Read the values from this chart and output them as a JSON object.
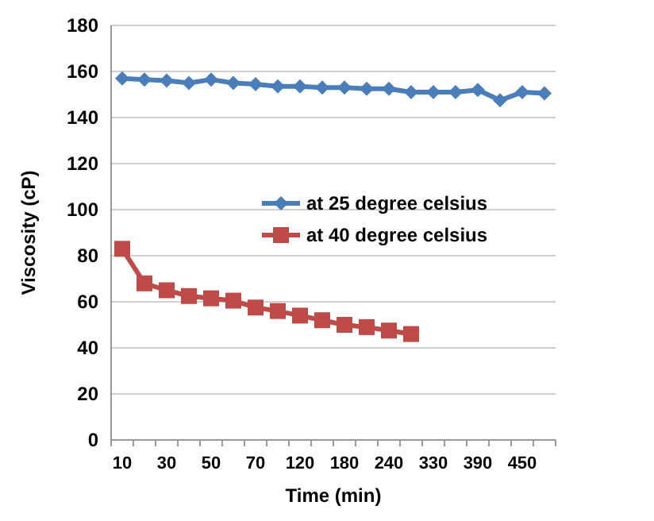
{
  "chart_data": {
    "type": "line",
    "xlabel": "Time (min)",
    "ylabel": "Viscosity (cP)",
    "categories": [
      "10",
      null,
      "30",
      null,
      "50",
      null,
      "70",
      null,
      "120",
      null,
      "180",
      null,
      "240",
      null,
      "330",
      null,
      "390",
      null,
      "450",
      null
    ],
    "series": [
      {
        "name": "at 25 degree celsius",
        "color": "#4a7ebb",
        "marker": "diamond",
        "values": [
          157,
          156.5,
          156,
          155,
          156.5,
          155,
          154.5,
          153.5,
          153.5,
          153,
          153,
          152.5,
          152.5,
          151,
          151,
          151,
          152,
          147.5,
          151,
          150.5
        ]
      },
      {
        "name": "at 40 degree celsius",
        "color": "#be4b48",
        "marker": "square",
        "values": [
          83,
          68,
          65,
          62.5,
          61.5,
          60.5,
          57.5,
          56,
          54,
          52,
          50,
          49,
          47.5,
          46,
          null,
          null,
          null,
          null,
          null,
          null
        ]
      }
    ],
    "ylim": [
      0,
      180
    ],
    "yticks": [
      0,
      20,
      40,
      60,
      80,
      100,
      120,
      140,
      160,
      180
    ],
    "grid": "y",
    "legend": "right"
  }
}
